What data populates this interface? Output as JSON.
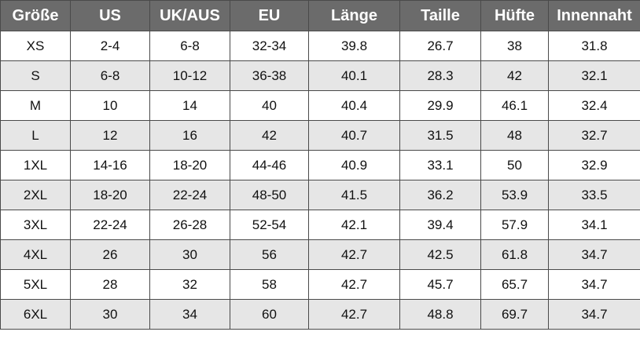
{
  "table": {
    "header": [
      "Größe",
      "US",
      "UK/AUS",
      "EU",
      "Länge",
      "Taille",
      "Hüfte",
      "Innennaht"
    ],
    "rows": [
      [
        "XS",
        "2-4",
        "6-8",
        "32-34",
        "39.8",
        "26.7",
        "38",
        "31.8"
      ],
      [
        "S",
        "6-8",
        "10-12",
        "36-38",
        "40.1",
        "28.3",
        "42",
        "32.1"
      ],
      [
        "M",
        "10",
        "14",
        "40",
        "40.4",
        "29.9",
        "46.1",
        "32.4"
      ],
      [
        "L",
        "12",
        "16",
        "42",
        "40.7",
        "31.5",
        "48",
        "32.7"
      ],
      [
        "1XL",
        "14-16",
        "18-20",
        "44-46",
        "40.9",
        "33.1",
        "50",
        "32.9"
      ],
      [
        "2XL",
        "18-20",
        "22-24",
        "48-50",
        "41.5",
        "36.2",
        "53.9",
        "33.5"
      ],
      [
        "3XL",
        "22-24",
        "26-28",
        "52-54",
        "42.1",
        "39.4",
        "57.9",
        "34.1"
      ],
      [
        "4XL",
        "26",
        "30",
        "56",
        "42.7",
        "42.5",
        "61.8",
        "34.7"
      ],
      [
        "5XL",
        "28",
        "32",
        "58",
        "42.7",
        "45.7",
        "65.7",
        "34.7"
      ],
      [
        "6XL",
        "30",
        "34",
        "60",
        "42.7",
        "48.8",
        "69.7",
        "34.7"
      ]
    ]
  }
}
